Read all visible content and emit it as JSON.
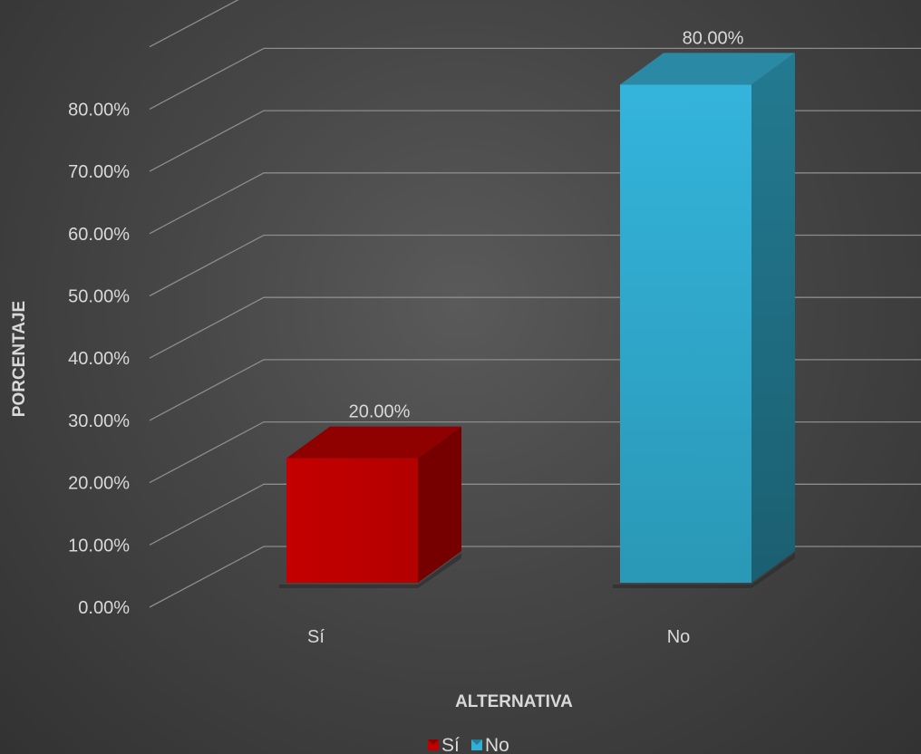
{
  "chart_data": {
    "type": "bar",
    "categories": [
      "Sí",
      "No"
    ],
    "values": [
      20,
      80
    ],
    "data_labels": [
      "20.00%",
      "80.00%"
    ],
    "xlabel": "ALTERNATIVA",
    "ylabel": "PORCENTAJE",
    "ylim": [
      0,
      80
    ],
    "y_ticks": [
      "0.00%",
      "10.00%",
      "20.00%",
      "30.00%",
      "40.00%",
      "50.00%",
      "60.00%",
      "70.00%",
      "80.00%"
    ],
    "legend": [
      {
        "name": "Sí",
        "color": "#c00000"
      },
      {
        "name": "No",
        "color": "#31b0d5"
      }
    ],
    "legend_position": "bottom",
    "grid": true,
    "three_d": true,
    "colors": [
      "#c00000",
      "#31b0d5"
    ]
  }
}
